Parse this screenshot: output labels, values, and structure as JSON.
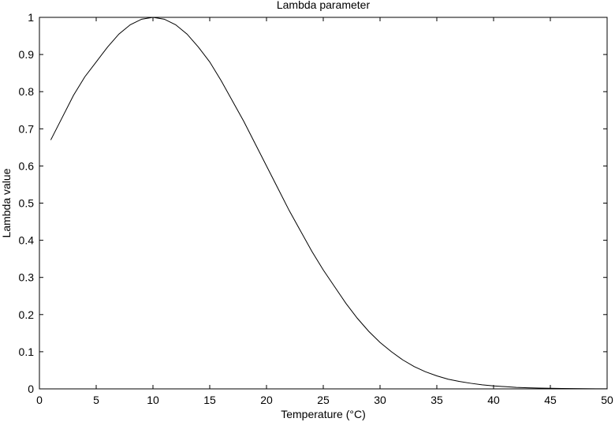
{
  "chart_data": {
    "type": "line",
    "title": "Lambda parameter",
    "xlabel": "Temperature (°C)",
    "ylabel": "Lambda value",
    "xlim": [
      0,
      50
    ],
    "ylim": [
      0,
      1
    ],
    "x_ticks": [
      "0",
      "5",
      "10",
      "15",
      "20",
      "25",
      "30",
      "35",
      "40",
      "45",
      "50"
    ],
    "y_ticks": [
      "0",
      "0.1",
      "0.2",
      "0.3",
      "0.4",
      "0.5",
      "0.6",
      "0.7",
      "0.8",
      "0.9",
      "1"
    ],
    "grid": false,
    "line_color": "#000000",
    "series": [
      {
        "x": [
          1,
          2,
          3,
          4,
          5,
          6,
          7,
          8,
          9,
          10,
          11,
          12,
          13,
          14,
          15,
          16,
          17,
          18,
          19,
          20,
          21,
          22,
          23,
          24,
          25,
          26,
          27,
          28,
          29,
          30,
          31,
          32,
          33,
          34,
          35,
          36,
          37,
          38,
          39,
          40,
          41,
          42,
          43,
          44,
          45,
          46,
          47,
          48,
          49,
          50
        ],
        "values": [
          0.67,
          0.73,
          0.79,
          0.84,
          0.88,
          0.92,
          0.955,
          0.98,
          0.995,
          1.0,
          0.995,
          0.98,
          0.955,
          0.92,
          0.88,
          0.83,
          0.775,
          0.72,
          0.66,
          0.6,
          0.54,
          0.48,
          0.425,
          0.37,
          0.32,
          0.275,
          0.23,
          0.19,
          0.155,
          0.125,
          0.1,
          0.078,
          0.06,
          0.046,
          0.035,
          0.026,
          0.02,
          0.015,
          0.011,
          0.008,
          0.006,
          0.004,
          0.003,
          0.002,
          0.0015,
          0.001,
          0.0008,
          0.0005,
          0.0003,
          0.0002
        ]
      }
    ]
  }
}
